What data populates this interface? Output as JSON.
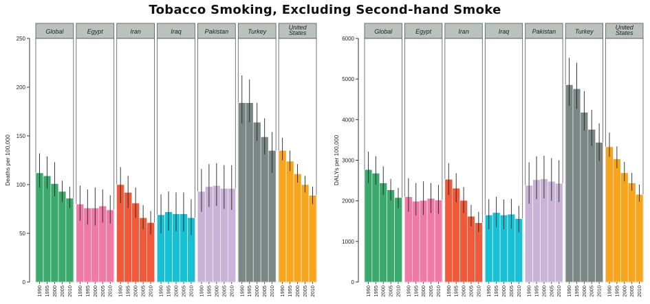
{
  "title": "Tobacco Smoking, Excluding Second-hand Smoke",
  "chart_data": [
    {
      "type": "bar",
      "ylabel": "Deaths per 100,000",
      "ylim": [
        0,
        250
      ],
      "yticks": [
        0,
        50,
        100,
        150,
        200,
        250
      ],
      "years": [
        "1990",
        "1995",
        "2000",
        "2005",
        "2010"
      ],
      "panels": [
        {
          "name": "Global",
          "color": "#3aa96b",
          "values": [
            112,
            109,
            101,
            93,
            86
          ],
          "lower": [
            97,
            96,
            88,
            82,
            76
          ],
          "upper": [
            132,
            129,
            123,
            104,
            98
          ]
        },
        {
          "name": "Egypt",
          "color": "#f07aa6",
          "values": [
            80,
            76,
            76,
            78,
            74
          ],
          "lower": [
            63,
            59,
            58,
            61,
            60
          ],
          "upper": [
            99,
            95,
            97,
            95,
            89
          ]
        },
        {
          "name": "Iran",
          "color": "#f05a3a",
          "values": [
            100,
            92,
            81,
            66,
            61
          ],
          "lower": [
            81,
            76,
            66,
            54,
            49
          ],
          "upper": [
            118,
            109,
            97,
            79,
            73
          ]
        },
        {
          "name": "Iraq",
          "color": "#17c1d3",
          "values": [
            69,
            72,
            70,
            70,
            66
          ],
          "lower": [
            50,
            53,
            52,
            52,
            48
          ],
          "upper": [
            90,
            93,
            92,
            92,
            85
          ]
        },
        {
          "name": "Pakistan",
          "color": "#c9b3d7",
          "values": [
            93,
            98,
            99,
            96,
            96
          ],
          "lower": [
            72,
            77,
            78,
            75,
            74
          ],
          "upper": [
            116,
            121,
            122,
            120,
            120
          ]
        },
        {
          "name": "Turkey",
          "color": "#7a8784",
          "values": [
            184,
            184,
            164,
            149,
            135
          ],
          "lower": [
            163,
            164,
            145,
            131,
            112
          ],
          "upper": [
            212,
            208,
            184,
            168,
            154
          ]
        },
        {
          "name": "United States",
          "label_lines": [
            "United",
            "States"
          ],
          "color": "#f7a51c",
          "values": [
            135,
            124,
            111,
            100,
            89
          ],
          "lower": [
            125,
            114,
            102,
            92,
            80
          ],
          "upper": [
            148,
            135,
            121,
            109,
            98
          ]
        }
      ]
    },
    {
      "type": "bar",
      "ylabel": "DALYs per 100,000",
      "ylim": [
        0,
        6000
      ],
      "yticks": [
        0,
        1000,
        2000,
        3000,
        4000,
        5000,
        6000
      ],
      "years": [
        "1990",
        "1995",
        "2000",
        "2005",
        "2010"
      ],
      "panels": [
        {
          "name": "Global",
          "color": "#3aa96b",
          "values": [
            2770,
            2680,
            2440,
            2270,
            2080
          ],
          "lower": [
            2440,
            2400,
            2140,
            2010,
            1820
          ],
          "upper": [
            3210,
            3100,
            2850,
            2540,
            2320
          ]
        },
        {
          "name": "Egypt",
          "color": "#f07aa6",
          "values": [
            2100,
            1990,
            2010,
            2060,
            2020
          ],
          "lower": [
            1730,
            1640,
            1650,
            1700,
            1680
          ],
          "upper": [
            2560,
            2440,
            2480,
            2440,
            2390
          ]
        },
        {
          "name": "Iran",
          "color": "#f05a3a",
          "values": [
            2530,
            2310,
            2010,
            1620,
            1460
          ],
          "lower": [
            2140,
            1960,
            1700,
            1370,
            1230
          ],
          "upper": [
            2930,
            2680,
            2340,
            1900,
            1730
          ]
        },
        {
          "name": "Iraq",
          "color": "#17c1d3",
          "values": [
            1650,
            1710,
            1650,
            1670,
            1560
          ],
          "lower": [
            1300,
            1350,
            1300,
            1320,
            1230
          ],
          "upper": [
            2040,
            2100,
            2030,
            2050,
            1880
          ]
        },
        {
          "name": "Pakistan",
          "color": "#c9b3d7",
          "values": [
            2380,
            2520,
            2540,
            2480,
            2430
          ],
          "lower": [
            1930,
            2040,
            2060,
            2000,
            1970
          ],
          "upper": [
            2950,
            3100,
            3110,
            3050,
            3000
          ]
        },
        {
          "name": "Turkey",
          "color": "#7a8784",
          "values": [
            4860,
            4760,
            4180,
            3760,
            3440
          ],
          "lower": [
            4340,
            4270,
            3730,
            3350,
            2980
          ],
          "upper": [
            5520,
            5400,
            4700,
            4240,
            3910
          ]
        },
        {
          "name": "United States",
          "label_lines": [
            "United",
            "States"
          ],
          "color": "#f7a51c",
          "values": [
            3330,
            3030,
            2690,
            2440,
            2160
          ],
          "lower": [
            3080,
            2800,
            2480,
            2250,
            1980
          ],
          "upper": [
            3680,
            3340,
            2960,
            2690,
            2400
          ]
        }
      ]
    }
  ]
}
